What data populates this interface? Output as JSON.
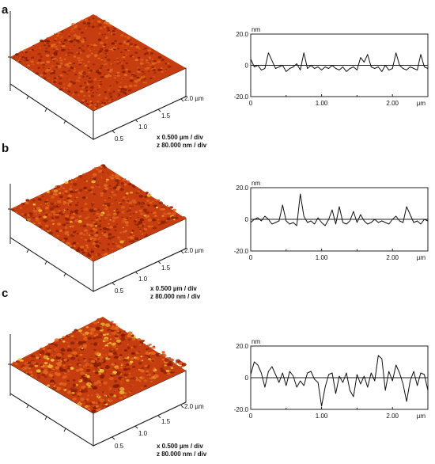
{
  "colors": {
    "surface_dark": "#8a1f06",
    "surface_mid": "#c63d10",
    "surface_light": "#e46a1e",
    "surface_peak": "#f3c73a",
    "frame": "#222222",
    "profile_line": "#111111"
  },
  "chart_data": [
    {
      "type": "surface-3d-and-line-profile",
      "panel_label": "a",
      "xy_axis_ticks": [
        "0.5",
        "1.0",
        "1.5",
        "2.0 µm"
      ],
      "scale_x": "x  0.500 µm / div",
      "scale_z": "z  80.000 nm / div",
      "roughness": 0.35,
      "peak_fraction": 0.0,
      "profile": {
        "y_unit": "nm",
        "y_ticks": [
          "20.0",
          "0",
          "-20.0"
        ],
        "ylim": [
          -20,
          20
        ],
        "x_ticks": [
          "0",
          "1.00",
          "2.00"
        ],
        "x_unit": "µm",
        "xlim": [
          0,
          2.5
        ],
        "x": [
          0,
          0.05,
          0.1,
          0.15,
          0.2,
          0.25,
          0.3,
          0.35,
          0.4,
          0.45,
          0.5,
          0.55,
          0.6,
          0.65,
          0.7,
          0.75,
          0.8,
          0.85,
          0.9,
          0.95,
          1.0,
          1.05,
          1.1,
          1.15,
          1.2,
          1.25,
          1.3,
          1.35,
          1.4,
          1.45,
          1.5,
          1.55,
          1.6,
          1.65,
          1.7,
          1.75,
          1.8,
          1.85,
          1.9,
          1.95,
          2.0,
          2.05,
          2.1,
          2.15,
          2.2,
          2.25,
          2.3,
          2.35,
          2.4,
          2.45,
          2.5
        ],
        "y": [
          4,
          -1,
          0,
          -3,
          -2,
          8,
          3,
          -2,
          -1,
          0,
          -4,
          -2,
          -1,
          1,
          -3,
          8,
          -2,
          0,
          -2,
          -1,
          -3,
          -1,
          -2,
          0,
          -2,
          -3,
          -1,
          -4,
          -2,
          -1,
          -3,
          5,
          2,
          7,
          -1,
          -2,
          -1,
          -4,
          0,
          -3,
          -2,
          8,
          0,
          -2,
          -3,
          -1,
          -2,
          -3,
          7,
          -1,
          -2
        ]
      }
    },
    {
      "type": "surface-3d-and-line-profile",
      "panel_label": "b",
      "xy_axis_ticks": [
        "0.5",
        "1.0",
        "1.5",
        "2.0 µm"
      ],
      "scale_x": "x  0.500 µm / div",
      "scale_z": "z  80.000 nm / div",
      "roughness": 0.55,
      "peak_fraction": 0.04,
      "profile": {
        "y_unit": "nm",
        "y_ticks": [
          "20.0",
          "0",
          "-20.0"
        ],
        "ylim": [
          -20,
          20
        ],
        "x_ticks": [
          "0",
          "1.00",
          "2.00"
        ],
        "x_unit": "µm",
        "xlim": [
          0,
          2.5
        ],
        "x": [
          0,
          0.05,
          0.1,
          0.15,
          0.2,
          0.25,
          0.3,
          0.35,
          0.4,
          0.45,
          0.5,
          0.55,
          0.6,
          0.65,
          0.7,
          0.75,
          0.8,
          0.85,
          0.9,
          0.95,
          1.0,
          1.05,
          1.1,
          1.15,
          1.2,
          1.25,
          1.3,
          1.35,
          1.4,
          1.45,
          1.5,
          1.55,
          1.6,
          1.65,
          1.7,
          1.75,
          1.8,
          1.85,
          1.9,
          1.95,
          2.0,
          2.05,
          2.1,
          2.15,
          2.2,
          2.25,
          2.3,
          2.35,
          2.4,
          2.45,
          2.5
        ],
        "y": [
          -2,
          0,
          1,
          -1,
          2,
          0,
          -3,
          -2,
          -1,
          9,
          -1,
          -3,
          -2,
          -4,
          16,
          2,
          -2,
          -1,
          -3,
          1,
          -2,
          -4,
          0,
          6,
          -3,
          8,
          -2,
          -3,
          -1,
          5,
          -2,
          3,
          -1,
          -3,
          -2,
          0,
          -2,
          -1,
          -2,
          -3,
          0,
          2,
          -1,
          -2,
          8,
          3,
          -2,
          -1,
          -3,
          0,
          -1
        ]
      }
    },
    {
      "type": "surface-3d-and-line-profile",
      "panel_label": "c",
      "xy_axis_ticks": [
        "0.5",
        "1.0",
        "1.5",
        "2.0 µm"
      ],
      "scale_x": "x  0.500 µm / div",
      "scale_z": "z  80.000 nm / div",
      "roughness": 0.95,
      "peak_fraction": 0.1,
      "profile": {
        "y_unit": "nm",
        "y_ticks": [
          "20.0",
          "0",
          "-20.0"
        ],
        "ylim": [
          -20,
          20
        ],
        "x_ticks": [
          "0",
          "1.00",
          "2.00"
        ],
        "x_unit": "µm",
        "xlim": [
          0,
          2.5
        ],
        "x": [
          0,
          0.05,
          0.1,
          0.15,
          0.2,
          0.25,
          0.3,
          0.35,
          0.4,
          0.45,
          0.5,
          0.55,
          0.6,
          0.65,
          0.7,
          0.75,
          0.8,
          0.85,
          0.9,
          0.95,
          1.0,
          1.05,
          1.1,
          1.15,
          1.2,
          1.25,
          1.3,
          1.35,
          1.4,
          1.45,
          1.5,
          1.55,
          1.6,
          1.65,
          1.7,
          1.75,
          1.8,
          1.85,
          1.9,
          1.95,
          2.0,
          2.05,
          2.1,
          2.15,
          2.2,
          2.25,
          2.3,
          2.35,
          2.4,
          2.45,
          2.5
        ],
        "y": [
          2,
          10,
          8,
          3,
          -6,
          4,
          7,
          2,
          -3,
          3,
          -5,
          4,
          1,
          -6,
          -2,
          -5,
          3,
          4,
          -1,
          -3,
          -18,
          -6,
          2,
          3,
          -10,
          1,
          -3,
          3,
          -8,
          -12,
          2,
          -4,
          1,
          -6,
          3,
          -2,
          14,
          12,
          -8,
          4,
          -2,
          8,
          3,
          -4,
          -15,
          -2,
          4,
          -5,
          3,
          2,
          -8
        ]
      }
    }
  ]
}
